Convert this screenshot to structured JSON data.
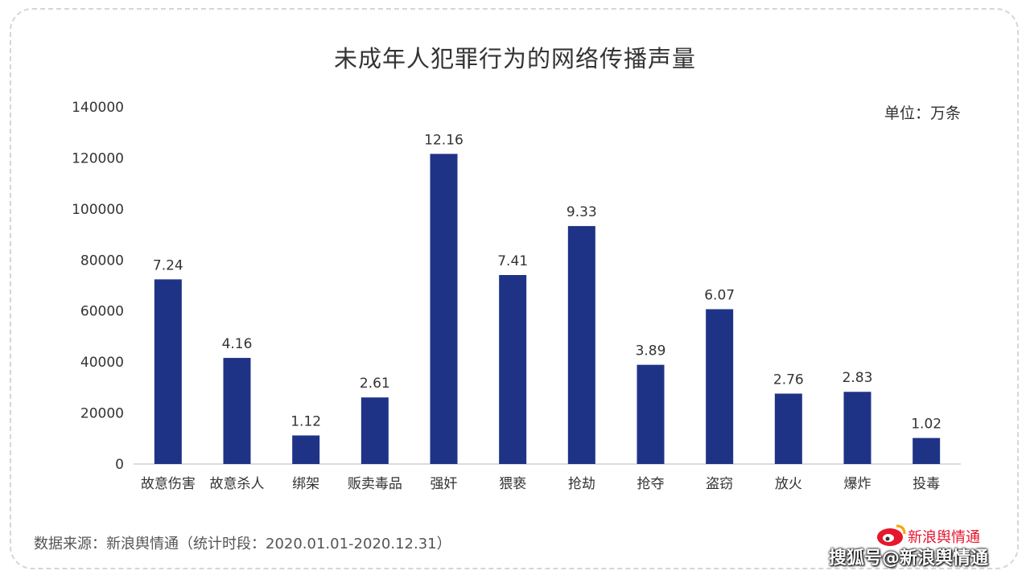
{
  "title": "未成年人犯罪行为的网络传播声量",
  "unit_label": "单位：万条",
  "source": "数据来源：新浪舆情通（统计时段：2020.01.01-2020.12.31）",
  "watermark": "搜狐号@新浪舆情通",
  "logo_text": "新浪舆情通",
  "colors": {
    "bar": "#1f3386",
    "axis": "#d0d0d0",
    "text": "#333333"
  },
  "chart_data": {
    "type": "bar",
    "title": "未成年人犯罪行为的网络传播声量",
    "xlabel": "",
    "ylabel": "",
    "ylim": [
      0,
      140000
    ],
    "yticks": [
      "0",
      "20000",
      "40000",
      "60000",
      "80000",
      "100000",
      "120000",
      "140000"
    ],
    "grid": false,
    "categories": [
      "故意伤害",
      "故意杀人",
      "绑架",
      "贩卖毒品",
      "强奸",
      "猥亵",
      "抢劫",
      "抢夺",
      "盗窃",
      "放火",
      "爆炸",
      "投毒"
    ],
    "values": [
      72400,
      41600,
      11200,
      26100,
      121600,
      74100,
      93300,
      38900,
      60700,
      27600,
      28300,
      10200
    ],
    "data_labels": [
      "7.24",
      "4.16",
      "1.12",
      "2.61",
      "12.16",
      "7.41",
      "9.33",
      "3.89",
      "6.07",
      "2.76",
      "2.83",
      "1.02"
    ]
  }
}
